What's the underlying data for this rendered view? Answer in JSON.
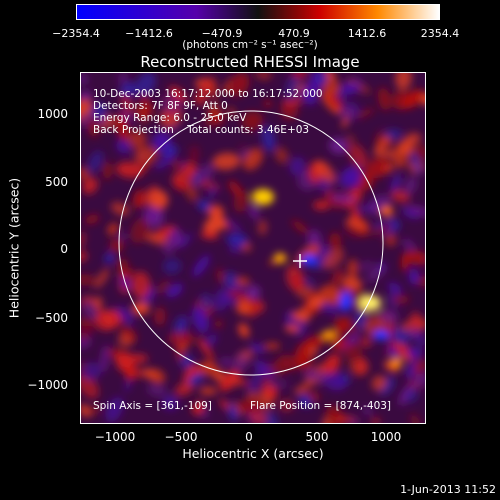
{
  "colorbar": {
    "ticks": [
      "−2354.4",
      "−1412.6",
      "−470.9",
      "470.9",
      "1412.6",
      "2354.4"
    ],
    "units": "(photons cm⁻² s⁻¹ asec⁻²)"
  },
  "title": "Reconstructed RHESSI Image",
  "info": {
    "time": "10-Dec-2003 16:17:12.000 to 16:17:52.000",
    "detectors": "Detectors: 7F 8F 9F, Att 0",
    "energy": "Energy Range: 6.0 - 25.0 keV",
    "method": "Back Projection    Total counts: 3.46E+03",
    "spin_axis": "Spin Axis = [361,-109]",
    "flare_position": "Flare Position = [874,-403]"
  },
  "axes": {
    "xlabel": "Heliocentric X (arcsec)",
    "ylabel": "Heliocentric Y (arcsec)",
    "xticks": [
      "−1000",
      "−500",
      "0",
      "500",
      "1000"
    ],
    "yticks": [
      "1000",
      "500",
      "0",
      "−500",
      "−1000"
    ]
  },
  "footer": {
    "timestamp": "1-Jun-2013 11:52"
  }
}
